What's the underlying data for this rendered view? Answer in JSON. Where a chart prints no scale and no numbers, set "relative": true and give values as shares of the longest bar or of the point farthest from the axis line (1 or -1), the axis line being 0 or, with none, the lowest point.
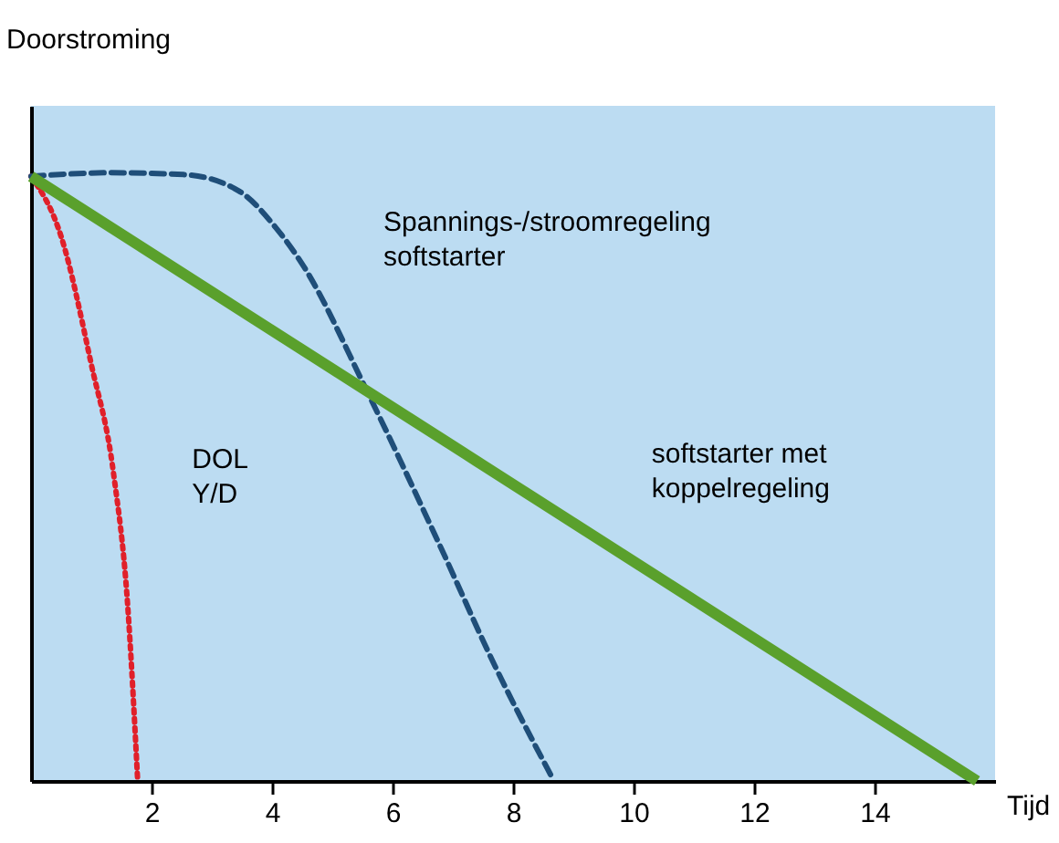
{
  "chart_data": {
    "type": "line",
    "relative": true,
    "xlabel": "Tijd",
    "ylabel": "Doorstroming",
    "xlim": [
      0,
      16
    ],
    "xticks": [
      2,
      4,
      6,
      8,
      10,
      12,
      14
    ],
    "grid": false,
    "legend": false,
    "marker": "none",
    "series": [
      {
        "name": "DOL Y/D",
        "color": "#e0202a",
        "line_style": "dotted",
        "x": [
          0,
          0.5,
          1.0,
          1.37,
          1.6,
          1.77
        ],
        "values": [
          0.994,
          0.895,
          0.685,
          0.505,
          0.294,
          0
        ]
      },
      {
        "name": "Spannings-/stroomregeling softstarter",
        "color": "#1f4e79",
        "line_style": "dashed",
        "x": [
          0,
          1.3,
          2.53,
          3.45,
          4.06,
          4.5,
          5.58,
          6.8,
          7.7,
          8.63
        ],
        "values": [
          0.994,
          1,
          0.997,
          0.97,
          0.91,
          0.85,
          0.64,
          0.384,
          0.189,
          0.009
        ]
      },
      {
        "name": "softstarter met koppelregeling",
        "color": "#5aa02c",
        "line_style": "solid",
        "x": [
          0,
          15.7
        ],
        "values": [
          0.994,
          0
        ]
      }
    ]
  }
}
